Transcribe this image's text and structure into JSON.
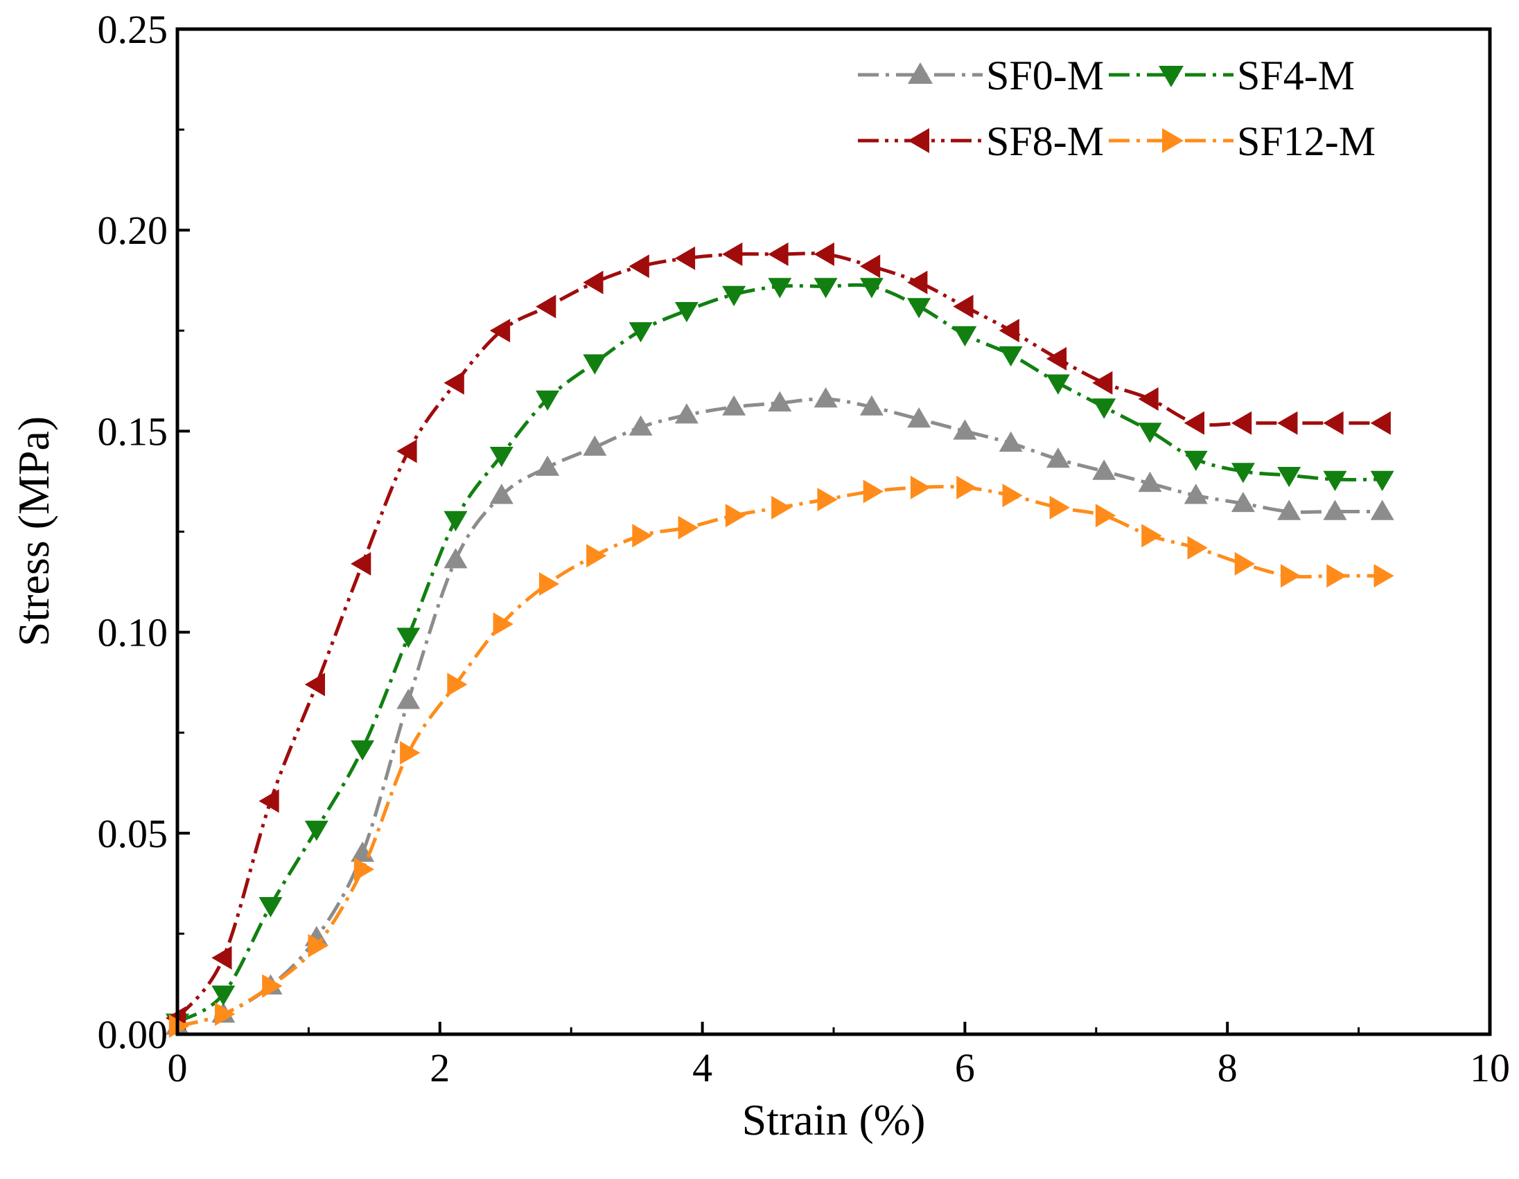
{
  "chart_data": {
    "type": "line",
    "title": "",
    "xlabel": "Strain (%)",
    "ylabel": "Stress (MPa)",
    "xlim": [
      0,
      10
    ],
    "ylim": [
      0,
      0.25
    ],
    "x_ticks": [
      0,
      2,
      4,
      6,
      8,
      10
    ],
    "x_tick_labels": [
      "0",
      "2",
      "4",
      "6",
      "8",
      "10"
    ],
    "y_ticks": [
      0,
      0.05,
      0.1,
      0.15,
      0.2,
      0.25
    ],
    "y_tick_labels": [
      "0.00",
      "0.05",
      "0.10",
      "0.15",
      "0.20",
      "0.25"
    ],
    "grid": false,
    "legend_position": "top-right",
    "x": [
      0,
      0.35,
      0.71,
      1.06,
      1.41,
      1.76,
      2.12,
      2.47,
      2.82,
      3.18,
      3.53,
      3.88,
      4.24,
      4.59,
      4.94,
      5.29,
      5.65,
      6.0,
      6.35,
      6.71,
      7.06,
      7.41,
      7.76,
      8.12,
      8.47,
      8.82,
      9.18
    ],
    "series": [
      {
        "name": "SF0-M",
        "color": "#8c8c8c",
        "marker": "triangle-up",
        "line_style": "dash-dot",
        "values": [
          0.002,
          0.005,
          0.012,
          0.024,
          0.045,
          0.083,
          0.118,
          0.134,
          0.141,
          0.146,
          0.151,
          0.154,
          0.156,
          0.157,
          0.158,
          0.156,
          0.153,
          0.15,
          0.147,
          0.143,
          0.14,
          0.137,
          0.134,
          0.132,
          0.13,
          0.13,
          0.13
        ]
      },
      {
        "name": "SF4-M",
        "color": "#118011",
        "marker": "triangle-down",
        "line_style": "dash-dot",
        "values": [
          0.003,
          0.01,
          0.032,
          0.051,
          0.071,
          0.099,
          0.128,
          0.144,
          0.158,
          0.167,
          0.175,
          0.18,
          0.184,
          0.186,
          0.186,
          0.186,
          0.181,
          0.174,
          0.169,
          0.162,
          0.156,
          0.15,
          0.143,
          0.14,
          0.139,
          0.138,
          0.138
        ]
      },
      {
        "name": "SF8-M",
        "color": "#a00c0c",
        "marker": "triangle-left",
        "line_style": "dash-dot-dot",
        "values": [
          0.004,
          0.019,
          0.058,
          0.087,
          0.117,
          0.145,
          0.162,
          0.175,
          0.181,
          0.187,
          0.191,
          0.193,
          0.194,
          0.194,
          0.194,
          0.191,
          0.187,
          0.181,
          0.175,
          0.168,
          0.162,
          0.158,
          0.152,
          0.152,
          0.152,
          0.152,
          0.152
        ]
      },
      {
        "name": "SF12-M",
        "color": "#ff8c1a",
        "marker": "triangle-right",
        "line_style": "dash-dot",
        "values": [
          0.002,
          0.005,
          0.012,
          0.022,
          0.041,
          0.07,
          0.087,
          0.102,
          0.112,
          0.119,
          0.124,
          0.126,
          0.129,
          0.131,
          0.133,
          0.135,
          0.136,
          0.136,
          0.134,
          0.131,
          0.129,
          0.124,
          0.121,
          0.117,
          0.114,
          0.114,
          0.114
        ]
      }
    ]
  }
}
